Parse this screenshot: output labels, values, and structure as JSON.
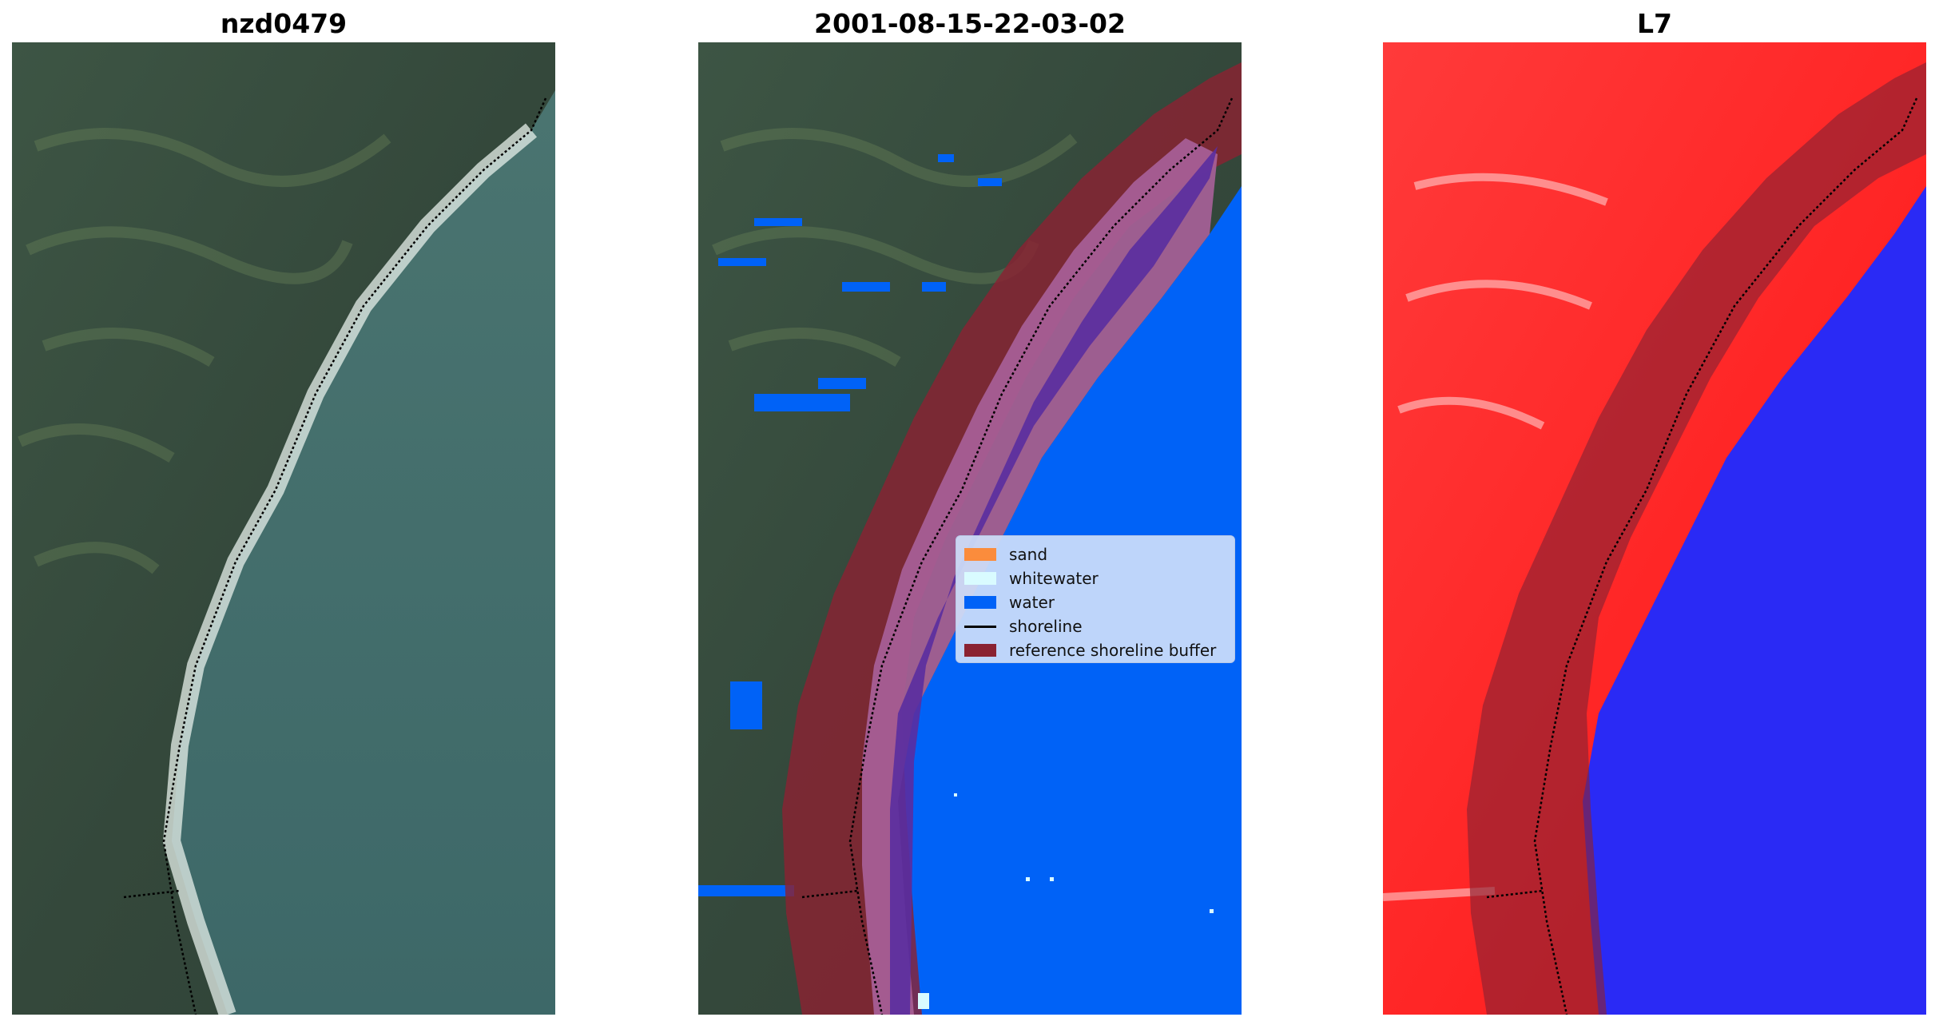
{
  "figure": {
    "panels": [
      {
        "title": "nzd0479",
        "content": "rgb-satellite-image"
      },
      {
        "title": "2001-08-15-22-03-02",
        "content": "classified-image"
      },
      {
        "title": "L7",
        "content": "mndwi-image"
      }
    ]
  },
  "legend": {
    "items": [
      {
        "label": "sand",
        "color": "#fb8c3c",
        "kind": "patch"
      },
      {
        "label": "whitewater",
        "color": "#d9fbff",
        "kind": "patch"
      },
      {
        "label": "water",
        "color": "#0062f7",
        "kind": "patch"
      },
      {
        "label": "shoreline",
        "color": "#000000",
        "kind": "line"
      },
      {
        "label": "reference shoreline buffer",
        "color": "#8a2232",
        "kind": "patch"
      }
    ]
  },
  "colors": {
    "land": "#33473a",
    "sea": "#3e6a6a",
    "water_class": "#0062f7",
    "buffer": "#8a2232",
    "mndwi_land": "#ff1a1a",
    "mndwi_water": "#2a2af5"
  }
}
